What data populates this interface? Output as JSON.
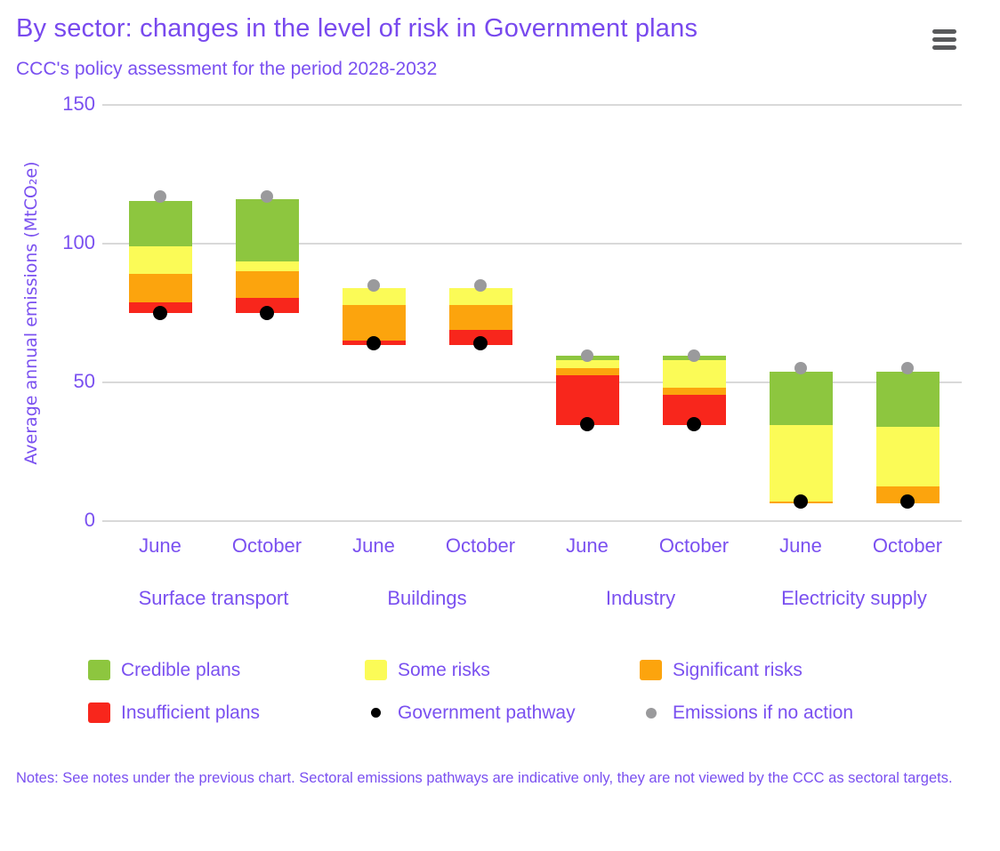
{
  "header": {
    "title": "By sector: changes in the level of risk in Government plans",
    "subtitle": "CCC's policy assessment for the period 2028-2032"
  },
  "menu": {
    "icon": "hamburger-menu"
  },
  "chart_data": {
    "type": "bar",
    "subtype": "floating stacked column ranges with point markers",
    "title": "By sector: changes in the level of risk in Government plans",
    "subtitle": "CCC's policy assessment for the period 2028-2032",
    "xlabel": "",
    "ylabel": "Average annual emissions (MtCO₂e)",
    "ylim": [
      0,
      150
    ],
    "yticks": [
      0,
      50,
      100,
      150
    ],
    "grid": "horizontal gridlines",
    "legend_position": "bottom",
    "groups": [
      "Surface transport",
      "Buildings",
      "Industry",
      "Electricity supply"
    ],
    "categories": [
      "June",
      "October",
      "June",
      "October",
      "June",
      "October",
      "June",
      "October"
    ],
    "bars": [
      {
        "group": "Surface transport",
        "month": "June",
        "segments": [
          {
            "band": "Insufficient plans",
            "from": 75,
            "to": 79
          },
          {
            "band": "Significant risks",
            "from": 79,
            "to": 89
          },
          {
            "band": "Some risks",
            "from": 89,
            "to": 99
          },
          {
            "band": "Credible plans",
            "from": 99,
            "to": 115.5
          }
        ],
        "government_pathway": 75,
        "emissions_if_no_action": 117
      },
      {
        "group": "Surface transport",
        "month": "October",
        "segments": [
          {
            "band": "Insufficient plans",
            "from": 75,
            "to": 80.5
          },
          {
            "band": "Significant risks",
            "from": 80.5,
            "to": 90
          },
          {
            "band": "Some risks",
            "from": 90,
            "to": 93.5
          },
          {
            "band": "Credible plans",
            "from": 93.5,
            "to": 116
          }
        ],
        "government_pathway": 75,
        "emissions_if_no_action": 117
      },
      {
        "group": "Buildings",
        "month": "June",
        "segments": [
          {
            "band": "Insufficient plans",
            "from": 63.5,
            "to": 65
          },
          {
            "band": "Significant risks",
            "from": 65,
            "to": 78
          },
          {
            "band": "Some risks",
            "from": 78,
            "to": 84
          }
        ],
        "government_pathway": 64,
        "emissions_if_no_action": 85
      },
      {
        "group": "Buildings",
        "month": "October",
        "segments": [
          {
            "band": "Insufficient plans",
            "from": 63.5,
            "to": 69
          },
          {
            "band": "Significant risks",
            "from": 69,
            "to": 78
          },
          {
            "band": "Some risks",
            "from": 78,
            "to": 84
          }
        ],
        "government_pathway": 64,
        "emissions_if_no_action": 85
      },
      {
        "group": "Industry",
        "month": "June",
        "segments": [
          {
            "band": "Insufficient plans",
            "from": 34.5,
            "to": 52.5
          },
          {
            "band": "Significant risks",
            "from": 52.5,
            "to": 55
          },
          {
            "band": "Some risks",
            "from": 55,
            "to": 58
          },
          {
            "band": "Credible plans",
            "from": 58,
            "to": 59.5
          }
        ],
        "government_pathway": 35,
        "emissions_if_no_action": 59.5
      },
      {
        "group": "Industry",
        "month": "October",
        "segments": [
          {
            "band": "Insufficient plans",
            "from": 34.5,
            "to": 45.5
          },
          {
            "band": "Significant risks",
            "from": 45.5,
            "to": 48
          },
          {
            "band": "Some risks",
            "from": 48,
            "to": 58
          },
          {
            "band": "Credible plans",
            "from": 58,
            "to": 59.5
          }
        ],
        "government_pathway": 35,
        "emissions_if_no_action": 59.5
      },
      {
        "group": "Electricity supply",
        "month": "June",
        "segments": [
          {
            "band": "Significant risks",
            "from": 6.5,
            "to": 7
          },
          {
            "band": "Some risks",
            "from": 7,
            "to": 34.5
          },
          {
            "band": "Credible plans",
            "from": 34.5,
            "to": 54
          }
        ],
        "government_pathway": 7,
        "emissions_if_no_action": 55
      },
      {
        "group": "Electricity supply",
        "month": "October",
        "segments": [
          {
            "band": "Significant risks",
            "from": 6.5,
            "to": 12.5
          },
          {
            "band": "Some risks",
            "from": 12.5,
            "to": 34
          },
          {
            "band": "Credible plans",
            "from": 34,
            "to": 54
          }
        ],
        "government_pathway": 7,
        "emissions_if_no_action": 55
      }
    ],
    "band_colors": {
      "Credible plans": "#8DC63F",
      "Some risks": "#FBFB57",
      "Significant risks": "#FCA40D",
      "Insufficient plans": "#F8261C"
    },
    "marker_colors": {
      "Government pathway": "#000000",
      "Emissions if no action": "#9A9A9C"
    }
  },
  "legend": {
    "rows": [
      [
        {
          "label": "Credible plans",
          "marker": "square",
          "color": "#8DC63F"
        },
        {
          "label": "Some risks",
          "marker": "square",
          "color": "#FBFB57"
        },
        {
          "label": "Significant risks",
          "marker": "square",
          "color": "#FCA40D"
        }
      ],
      [
        {
          "label": "Insufficient plans",
          "marker": "square",
          "color": "#F8261C"
        },
        {
          "label": "Government pathway",
          "marker": "dot",
          "color": "#000000"
        },
        {
          "label": "Emissions if no action",
          "marker": "dot",
          "color": "#9A9A9C"
        }
      ]
    ]
  },
  "notes": "Notes: See notes under the previous chart. Sectoral emissions pathways are indicative only, they are not viewed by the CCC as sectoral targets.",
  "theme": {
    "text_color": "#7A50F0",
    "grid_color": "#D9D9D9",
    "menu_icon_color": "#58595B",
    "background": "#FFFFFF"
  }
}
